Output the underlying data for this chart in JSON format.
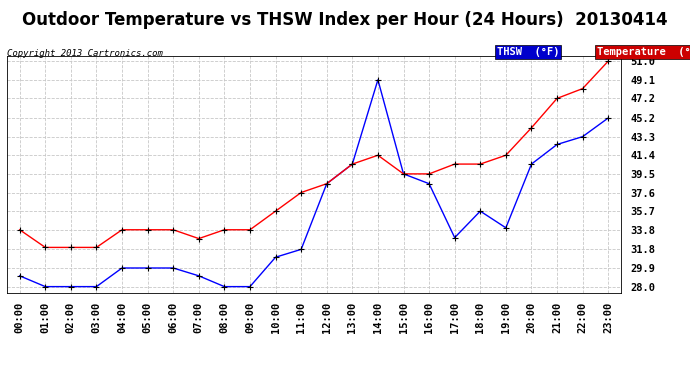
{
  "title": "Outdoor Temperature vs THSW Index per Hour (24 Hours)  20130414",
  "copyright": "Copyright 2013 Cartronics.com",
  "ylabel_right_ticks": [
    28.0,
    29.9,
    31.8,
    33.8,
    35.7,
    37.6,
    39.5,
    41.4,
    43.3,
    45.2,
    47.2,
    49.1,
    51.0
  ],
  "ylim": [
    27.4,
    51.5
  ],
  "hours": [
    "00:00",
    "01:00",
    "02:00",
    "03:00",
    "04:00",
    "05:00",
    "06:00",
    "07:00",
    "08:00",
    "09:00",
    "10:00",
    "11:00",
    "12:00",
    "13:00",
    "14:00",
    "15:00",
    "16:00",
    "17:00",
    "18:00",
    "19:00",
    "20:00",
    "21:00",
    "22:00",
    "23:00"
  ],
  "temp_values": [
    33.8,
    32.0,
    32.0,
    32.0,
    33.8,
    33.8,
    33.8,
    32.9,
    33.8,
    33.8,
    35.7,
    37.6,
    38.5,
    40.5,
    41.4,
    39.5,
    39.5,
    40.5,
    40.5,
    41.4,
    44.2,
    47.2,
    48.2,
    51.0
  ],
  "thsw_values": [
    29.1,
    28.0,
    28.0,
    28.0,
    29.9,
    29.9,
    29.9,
    29.1,
    28.0,
    28.0,
    31.0,
    31.8,
    38.5,
    40.5,
    49.1,
    39.5,
    38.5,
    33.0,
    35.7,
    34.0,
    40.5,
    42.5,
    43.3,
    45.2
  ],
  "temp_color": "#ff0000",
  "thsw_color": "#0000ff",
  "background_color": "#ffffff",
  "plot_bg_color": "#ffffff",
  "grid_color": "#c8c8c8",
  "title_fontsize": 12,
  "tick_fontsize": 7.5,
  "legend_thsw_bg": "#0000cc",
  "legend_temp_bg": "#cc0000",
  "legend_thsw_label": "THSW  (°F)",
  "legend_temp_label": "Temperature  (°F)"
}
